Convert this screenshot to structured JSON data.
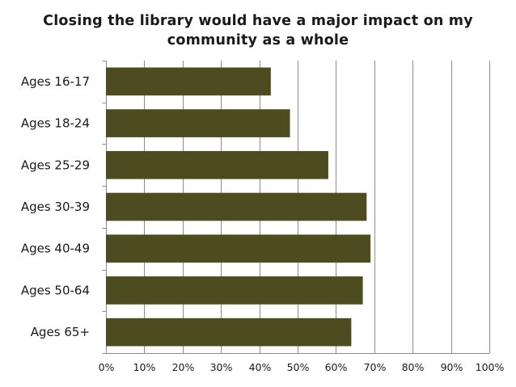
{
  "chart_data": {
    "type": "bar",
    "orientation": "horizontal",
    "title_lines": [
      "Closing the library would have a major impact on my",
      "community as a whole"
    ],
    "categories": [
      "Ages 16-17",
      "Ages 18-24",
      "Ages 25-29",
      "Ages 30-39",
      "Ages 40-49",
      "Ages 50-64",
      "Ages 65+"
    ],
    "values": [
      43,
      48,
      58,
      68,
      69,
      67,
      64
    ],
    "xlim": [
      0,
      100
    ],
    "x_ticks": [
      "0%",
      "10%",
      "20%",
      "30%",
      "40%",
      "50%",
      "60%",
      "70%",
      "80%",
      "90%",
      "100%"
    ],
    "grid": true,
    "legend": "none",
    "colors": {
      "bar": "#4d4b20",
      "grid": "#8c8c8c",
      "axis": "#8c8c8c"
    }
  }
}
